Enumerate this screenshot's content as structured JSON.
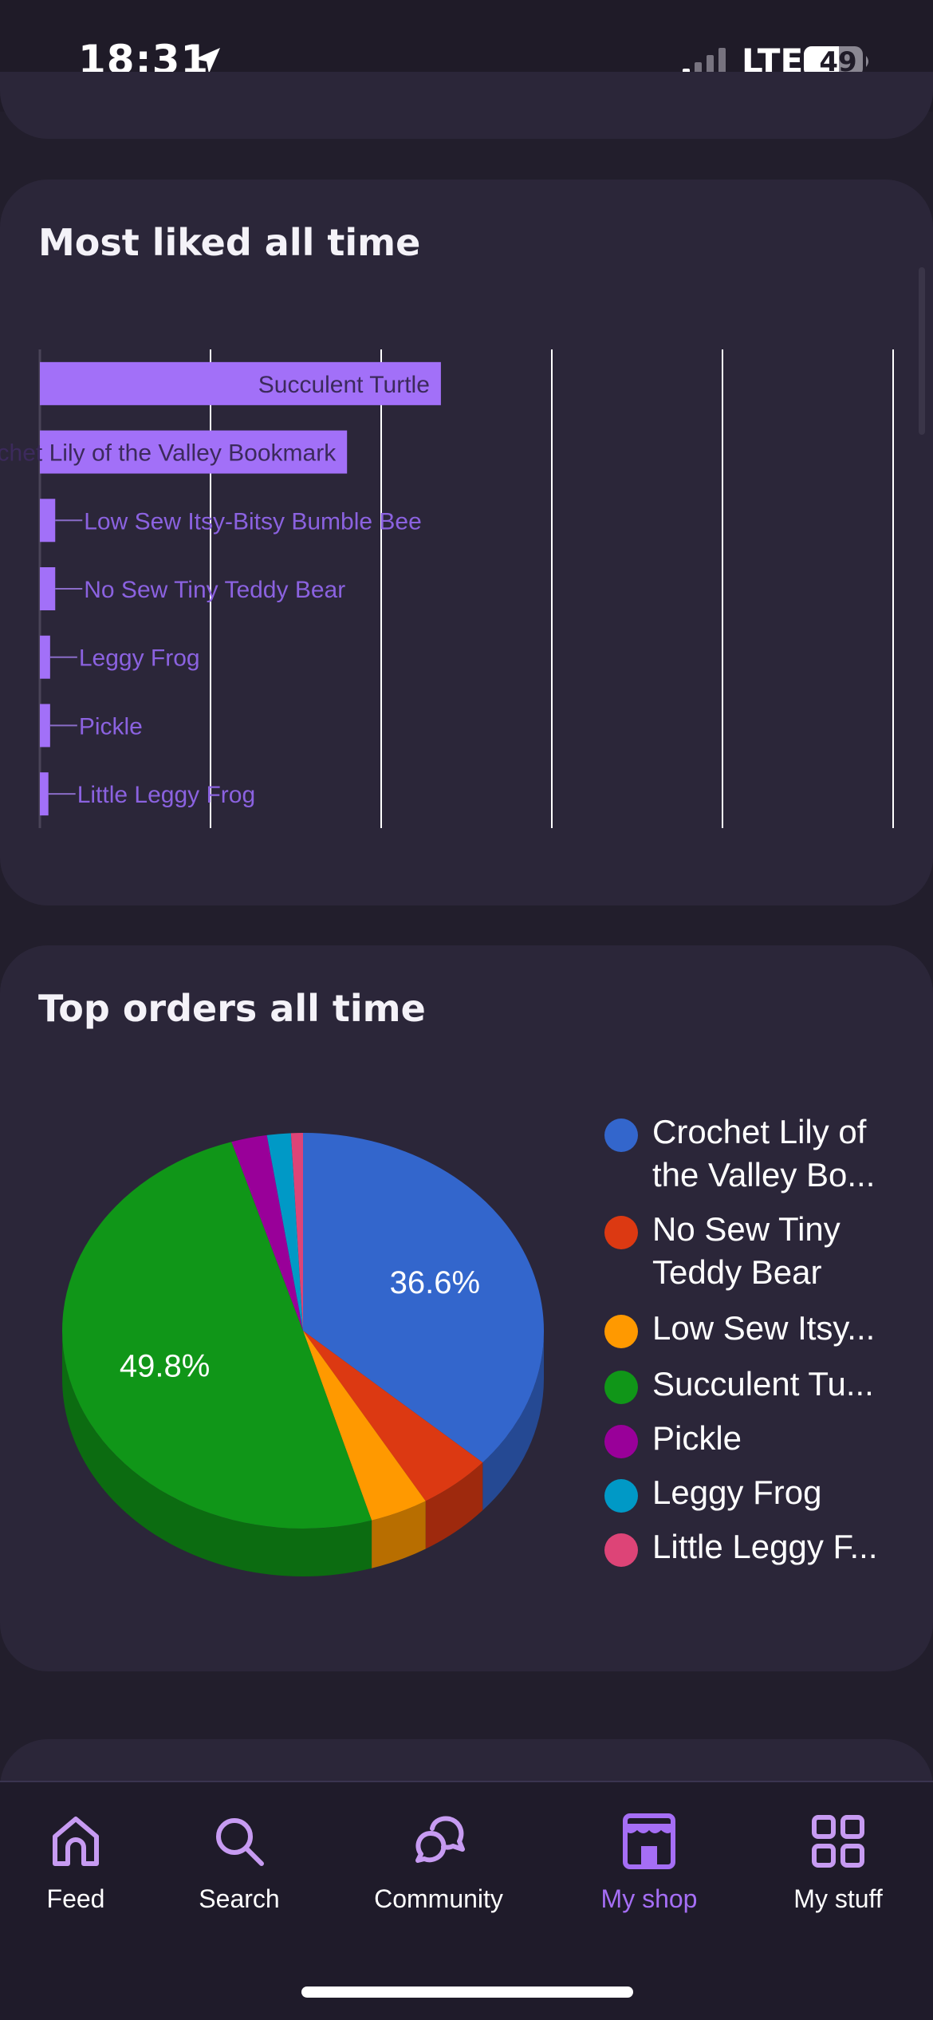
{
  "status_bar": {
    "time": "18:31",
    "network": "LTE",
    "battery": "49"
  },
  "sections": {
    "most_liked_title": "Most liked all time",
    "top_orders_title": "Top orders all time"
  },
  "chart_data": [
    {
      "type": "bar",
      "orientation": "horizontal",
      "title": "Most liked all time",
      "categories": [
        "Succulent Turtle",
        "Crochet Lily of the Valley Bookmark",
        "Low Sew Itsy-Bitsy Bumble Bee",
        "No Sew Tiny Teddy Bear",
        "Leggy Frog",
        "Pickle",
        "Little Leggy Frog"
      ],
      "values": [
        47,
        36,
        1.8,
        1.8,
        1.2,
        1.2,
        1
      ],
      "xlim": [
        0,
        100
      ],
      "grid": true,
      "bar_color": "#a270f8"
    },
    {
      "type": "pie",
      "style": "3d",
      "title": "Top orders all time",
      "labels": [
        "Crochet Lily of the Valley Bo...",
        "No Sew Tiny Teddy Bear",
        "Low Sew Itsy...",
        "Succulent Tu...",
        "Pickle",
        "Leggy Frog",
        "Little Leggy F..."
      ],
      "values": [
        36.6,
        4.9,
        3.9,
        49.8,
        2.4,
        1.6,
        0.8
      ],
      "data_labels": [
        "36.6%",
        "",
        "",
        "49.8%",
        "",
        "",
        ""
      ],
      "colors": [
        "#3366cc",
        "#dc3912",
        "#ff9900",
        "#109618",
        "#990099",
        "#0099c6",
        "#dd4477"
      ],
      "legend": "right"
    }
  ],
  "tab_bar": {
    "items": [
      {
        "label": "Feed",
        "icon": "home-icon"
      },
      {
        "label": "Search",
        "icon": "search-icon"
      },
      {
        "label": "Community",
        "icon": "chat-bubbles-icon"
      },
      {
        "label": "My shop",
        "icon": "shop-icon",
        "active": true
      },
      {
        "label": "My stuff",
        "icon": "grid-icon"
      }
    ],
    "active_color": "#a56ef5"
  }
}
